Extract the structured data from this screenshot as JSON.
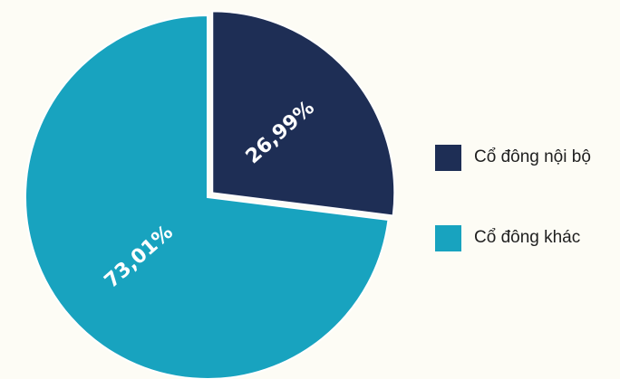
{
  "chart_data": {
    "type": "pie",
    "categories": [
      "Cổ đông nội bộ",
      "Cổ đông khác"
    ],
    "values": [
      26.99,
      73.01
    ],
    "labels": [
      "26,99%",
      "73,01%"
    ],
    "colors": [
      "#1e2e55",
      "#18a3bf"
    ],
    "start_angle_deg": 0,
    "exploded": "Cổ đông nội bộ",
    "legend_position": "right"
  }
}
